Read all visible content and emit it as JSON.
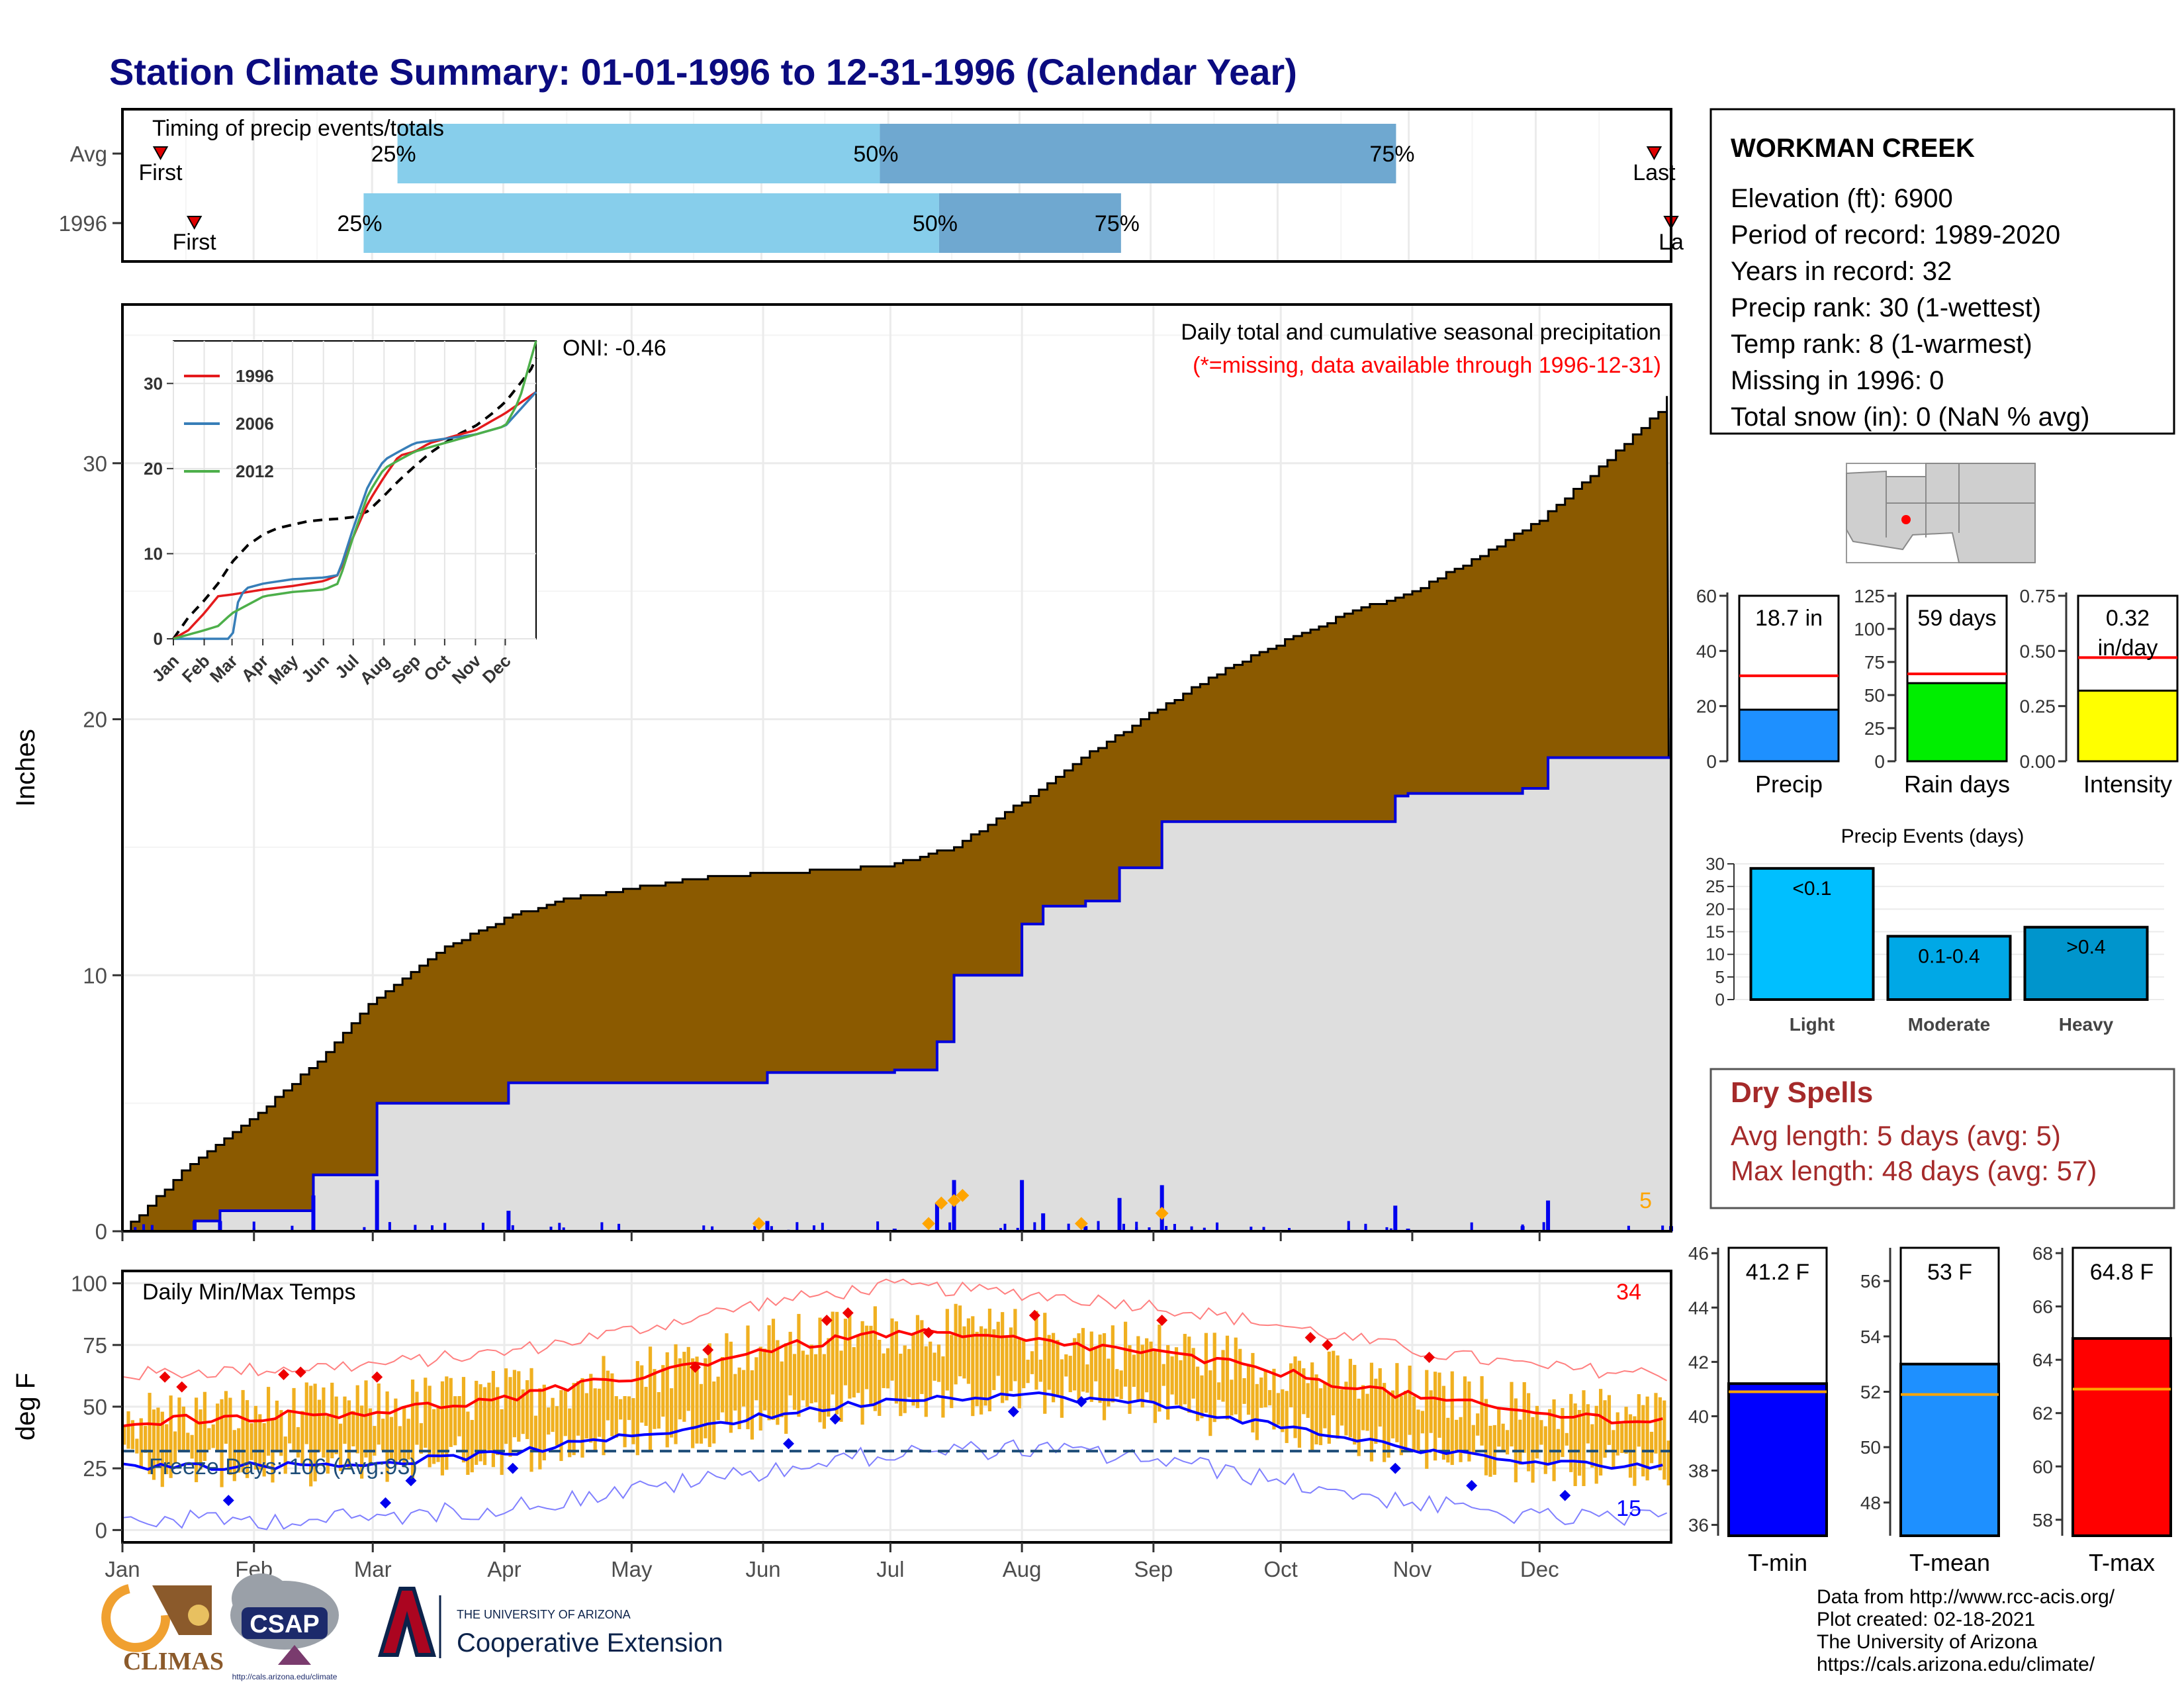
{
  "title": "Station Climate Summary: 01-01-1996 to 12-31-1996 (Calendar Year)",
  "timing": {
    "title": "Timing of precip events/totals",
    "rows": [
      {
        "label": "Avg",
        "first_label": "First",
        "last_label": "Last",
        "p25_label": "25%",
        "p50_label": "50%",
        "p75_label": "75%",
        "first_doy": 9,
        "p25_doy": 65,
        "p50_doy": 179,
        "p75_doy": 301,
        "last_doy": 362
      },
      {
        "label": "1996",
        "first_label": "First",
        "last_label": "La",
        "p25_label": "25%",
        "p50_label": "50%",
        "p75_label": "75%",
        "first_doy": 17,
        "p25_doy": 57,
        "p50_doy": 193,
        "p75_doy": 236,
        "last_doy": 366
      }
    ]
  },
  "main": {
    "ylabel": "Inches",
    "title": "Daily total and cumulative seasonal precipitation",
    "subtitle": "(*=missing, data available through 1996-12-31)",
    "oni": "ONI: -0.46",
    "count_label": "5",
    "yticks": [
      "0",
      "10",
      "20",
      "30"
    ],
    "months": [
      "Jan",
      "Feb",
      "Mar",
      "Apr",
      "May",
      "Jun",
      "Jul",
      "Aug",
      "Sep",
      "Oct",
      "Nov",
      "Dec"
    ]
  },
  "inset": {
    "yticks": [
      "0",
      "10",
      "20",
      "30"
    ],
    "months": [
      "Jan",
      "Feb",
      "Mar",
      "Apr",
      "May",
      "Jun",
      "Jul",
      "Aug",
      "Sep",
      "Oct",
      "Nov",
      "Dec"
    ],
    "legend": [
      {
        "name": "1996",
        "color": "#e41a1c"
      },
      {
        "name": "2006",
        "color": "#377eb8"
      },
      {
        "name": "2012",
        "color": "#4daf4a"
      }
    ]
  },
  "temps": {
    "title": "Daily Min/Max Temps",
    "ylabel": "deg F",
    "yticks": [
      "0",
      "25",
      "50",
      "75",
      "100"
    ],
    "freeze_label": "Freeze Days: 106 (Avg:93)",
    "max_count": "34",
    "min_count": "15"
  },
  "station": {
    "name": "WORKMAN CREEK",
    "lines": [
      "Elevation (ft): 6900",
      "Period of record: 1989-2020",
      "Years in record: 32",
      "Precip rank: 30 (1-wettest)",
      "Temp rank: 8 (1-warmest)",
      "Missing in 1996: 0",
      "Total snow (in): 0 (NaN % avg)"
    ]
  },
  "small_bars": [
    {
      "label": "Precip",
      "value_text": "18.7 in",
      "value_text2": "",
      "value": 18.7,
      "avg": 31,
      "ymax": 60,
      "yticks": [
        "0",
        "20",
        "40",
        "60"
      ],
      "color": "#1e90ff"
    },
    {
      "label": "Rain days",
      "value_text": "59 days",
      "value_text2": "",
      "value": 59,
      "avg": 66,
      "ymax": 125,
      "yticks": [
        "0",
        "25",
        "50",
        "75",
        "100",
        "125"
      ],
      "color": "#00ee00"
    },
    {
      "label": "Intensity",
      "value_text": "0.32",
      "value_text2": "in/day",
      "value": 0.32,
      "avg": 0.47,
      "ymax": 0.75,
      "yticks": [
        "0.00",
        "0.25",
        "0.50",
        "0.75"
      ],
      "color": "#ffff00"
    }
  ],
  "events": {
    "title": "Precip Events (days)",
    "yticks": [
      "0",
      "5",
      "10",
      "15",
      "20",
      "25",
      "30"
    ],
    "bars": [
      {
        "label": "Light",
        "bar_text": "<0.1",
        "value": 29,
        "color": "#00bfff"
      },
      {
        "label": "Moderate",
        "bar_text": "0.1-0.4",
        "value": 14,
        "color": "#00a8e6"
      },
      {
        "label": "Heavy",
        "bar_text": ">0.4",
        "value": 16,
        "color": "#0095cc"
      }
    ]
  },
  "dry_spells": {
    "title": "Dry Spells",
    "avg": "Avg length: 5 days (avg: 5)",
    "max": "Max length: 48 days (avg: 57)"
  },
  "temp_bars": [
    {
      "label": "T-min",
      "value_text": "41.2 F",
      "value": 41.2,
      "avg": 40.9,
      "ymin": 35.6,
      "ymax": 46.2,
      "yticks": [
        "36",
        "38",
        "40",
        "42",
        "44",
        "46"
      ],
      "color": "#0000ff"
    },
    {
      "label": "T-mean",
      "value_text": "53 F",
      "value": 53,
      "avg": 51.9,
      "ymin": 46.8,
      "ymax": 57.2,
      "yticks": [
        "48",
        "50",
        "52",
        "54",
        "56"
      ],
      "color": "#1e90ff"
    },
    {
      "label": "T-max",
      "value_text": "64.8 F",
      "value": 64.8,
      "avg": 62.9,
      "ymin": 57.4,
      "ymax": 68.2,
      "yticks": [
        "58",
        "60",
        "62",
        "64",
        "66",
        "68"
      ],
      "color": "#ff0000"
    }
  ],
  "footer": {
    "lines": [
      "Data from http://www.rcc-acis.org/",
      "Plot created: 02-18-2021",
      "The University of Arizona",
      "https://cals.arizona.edu/climate/"
    ],
    "climas": "CLIMAS",
    "csap": "CSAP",
    "csap_url": "http://cals.arizona.edu/climate",
    "ua_small": "THE UNIVERSITY OF ARIZONA",
    "ua_big": "Cooperative Extension"
  },
  "chart_data": [
    {
      "type": "area",
      "title": "Daily total and cumulative seasonal precipitation",
      "ylabel": "Inches",
      "ylim": [
        0,
        37
      ],
      "series": [
        {
          "name": "avg cumulative",
          "x": [
            0,
            15,
            31,
            45,
            59,
            75,
            91,
            105,
            120,
            135,
            152,
            166,
            181,
            196,
            212,
            227,
            243,
            258,
            273,
            288,
            304,
            319,
            334,
            349,
            362,
            365
          ],
          "values": [
            0,
            2.5,
            4.5,
            6.5,
            9.0,
            11.0,
            12.3,
            13.0,
            13.4,
            13.8,
            14.0,
            14.1,
            14.3,
            15.0,
            16.8,
            18.6,
            20.3,
            21.8,
            23.0,
            24.1,
            25.0,
            26.3,
            27.8,
            30.0,
            32,
            33
          ]
        },
        {
          "name": "1996 cumulative",
          "x": [
            0,
            17,
            23,
            31,
            45,
            58,
            60,
            91,
            120,
            152,
            182,
            192,
            196,
            212,
            217,
            227,
            235,
            245,
            270,
            300,
            303,
            330,
            336,
            365
          ],
          "values": [
            0,
            0.4,
            0.8,
            0.8,
            2.2,
            2.2,
            5.0,
            5.8,
            5.8,
            6.2,
            6.3,
            7.4,
            10.0,
            12.0,
            12.7,
            12.9,
            14.2,
            16.0,
            16.0,
            17.0,
            17.1,
            17.3,
            18.5,
            18.7
          ]
        }
      ]
    },
    {
      "type": "line",
      "title": "",
      "xlabel": "",
      "ylabel": "",
      "ylim": [
        0,
        35
      ],
      "series": [
        {
          "name": "1996",
          "x": [
            0,
            15,
            31,
            45,
            59,
            75,
            91,
            120,
            152,
            166,
            181,
            196,
            212,
            227,
            243,
            258,
            273,
            288,
            304,
            334,
            365
          ],
          "values": [
            0,
            1,
            3,
            5,
            5.2,
            5.5,
            5.8,
            6.2,
            6.8,
            7.5,
            12,
            16,
            19,
            21.5,
            22,
            23,
            23.5,
            24,
            24.5,
            26.5,
            29
          ]
        },
        {
          "name": "2006",
          "x": [
            0,
            59,
            66,
            75,
            91,
            120,
            152,
            166,
            181,
            196,
            212,
            227,
            243,
            273,
            304,
            334,
            365
          ],
          "values": [
            0,
            0,
            5,
            6,
            6.5,
            7,
            7.2,
            7.5,
            13,
            18,
            21,
            22,
            23,
            23.5,
            24,
            25,
            29
          ]
        },
        {
          "name": "2012",
          "x": [
            0,
            31,
            45,
            59,
            75,
            91,
            120,
            152,
            166,
            181,
            196,
            212,
            227,
            243,
            273,
            304,
            334,
            348,
            365
          ],
          "values": [
            0,
            1,
            1.5,
            3,
            4,
            5,
            5.5,
            5.8,
            6.5,
            12,
            17,
            20,
            21,
            22,
            23,
            24,
            25,
            28,
            35
          ]
        }
      ]
    },
    {
      "type": "line",
      "title": "Daily Min/Max Temps",
      "ylabel": "deg F",
      "ylim": [
        -5,
        105
      ],
      "series": [
        {
          "name": "avg max",
          "x": [
            0,
            31,
            59,
            90,
            120,
            151,
            181,
            212,
            243,
            273,
            304,
            334,
            365
          ],
          "values": [
            44,
            46,
            48,
            53,
            62,
            73,
            80,
            77,
            72,
            64,
            54,
            47,
            44
          ]
        },
        {
          "name": "avg min",
          "x": [
            0,
            31,
            59,
            90,
            120,
            151,
            181,
            212,
            243,
            273,
            304,
            334,
            365
          ],
          "values": [
            26,
            26,
            27,
            31,
            38,
            46,
            53,
            55,
            51,
            42,
            33,
            27,
            26
          ]
        },
        {
          "name": "freeze line",
          "x": [
            0,
            365
          ],
          "values": [
            32,
            32
          ]
        }
      ]
    },
    {
      "type": "bar",
      "categories": [
        "Light",
        "Moderate",
        "Heavy"
      ],
      "values": [
        29,
        14,
        16
      ],
      "title": "Precip Events (days)",
      "ylim": [
        0,
        30
      ]
    }
  ]
}
